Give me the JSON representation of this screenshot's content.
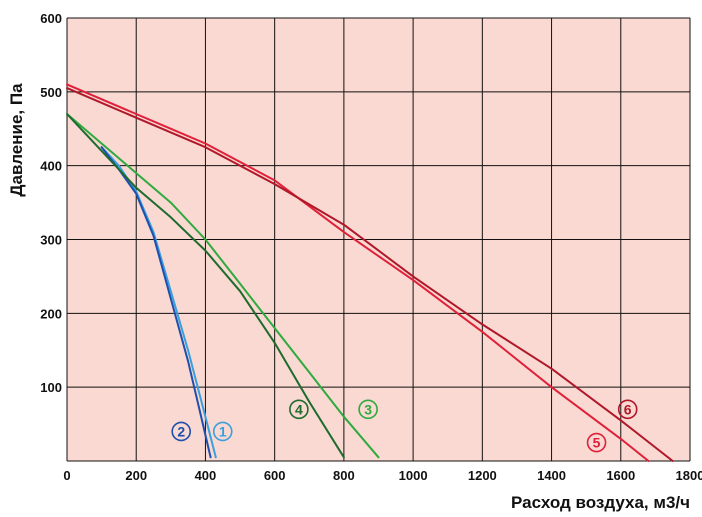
{
  "chart_data": {
    "type": "line",
    "title": "",
    "xlabel": "Расход воздуха, м3/ч",
    "ylabel": "Давление, Па",
    "xlim": [
      0,
      1800
    ],
    "ylim": [
      0,
      600
    ],
    "grid": true,
    "background": "#f9d9d1",
    "x_ticks": [
      "0",
      "200",
      "400",
      "600",
      "800",
      "1000",
      "1200",
      "1400",
      "1600",
      "1800"
    ],
    "y_ticks": [
      "100",
      "200",
      "300",
      "400",
      "500",
      "600"
    ],
    "series": [
      {
        "name": "1",
        "color": "#3aa0dc",
        "x": [
          100,
          150,
          200,
          250,
          300,
          350,
          400,
          430
        ],
        "y": [
          425,
          400,
          365,
          310,
          230,
          150,
          60,
          5
        ]
      },
      {
        "name": "2",
        "color": "#1f4fae",
        "x": [
          100,
          150,
          200,
          250,
          300,
          350,
          390,
          415
        ],
        "y": [
          425,
          395,
          362,
          305,
          220,
          135,
          55,
          5
        ]
      },
      {
        "name": "3",
        "color": "#2eaa3e",
        "x": [
          0,
          100,
          200,
          300,
          400,
          500,
          600,
          700,
          800,
          900
        ],
        "y": [
          470,
          430,
          390,
          350,
          300,
          240,
          180,
          120,
          60,
          5
        ]
      },
      {
        "name": "4",
        "color": "#1e6b2e",
        "x": [
          0,
          100,
          200,
          300,
          400,
          500,
          600,
          700,
          800
        ],
        "y": [
          470,
          420,
          370,
          330,
          285,
          230,
          160,
          80,
          5
        ]
      },
      {
        "name": "5",
        "color": "#e0203a",
        "x": [
          0,
          200,
          400,
          600,
          800,
          1000,
          1200,
          1400,
          1600,
          1680
        ],
        "y": [
          510,
          470,
          430,
          380,
          310,
          245,
          175,
          100,
          30,
          0
        ]
      },
      {
        "name": "6",
        "color": "#b0182a",
        "x": [
          0,
          200,
          400,
          600,
          800,
          1000,
          1200,
          1400,
          1600,
          1750
        ],
        "y": [
          505,
          465,
          425,
          375,
          320,
          250,
          185,
          125,
          55,
          0
        ]
      }
    ],
    "labels": [
      "1",
      "2",
      "3",
      "4",
      "5",
      "6"
    ]
  }
}
